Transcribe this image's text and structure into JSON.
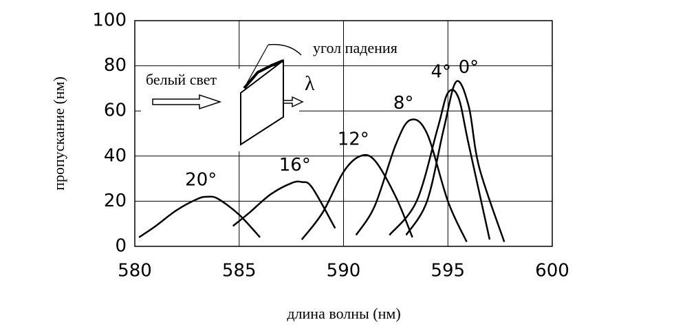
{
  "chart_data": {
    "type": "line",
    "xlabel": "длина волны (нм)",
    "ylabel": "пропускание (нм)",
    "xlim": [
      580,
      600
    ],
    "ylim": [
      0,
      100
    ],
    "xticks": [
      580,
      585,
      590,
      595,
      600
    ],
    "yticks": [
      0,
      20,
      40,
      60,
      80,
      100
    ],
    "grid": true,
    "series": [
      {
        "name": "20°",
        "color": "#000000",
        "x": [
          580.2,
          581,
          582,
          583,
          583.5,
          584,
          585,
          586
        ],
        "values": [
          4,
          9,
          16,
          21,
          22,
          21,
          14,
          4
        ]
      },
      {
        "name": "16°",
        "color": "#000000",
        "x": [
          584.7,
          585.5,
          586.5,
          587.5,
          588,
          588.5,
          589.6
        ],
        "values": [
          9,
          15,
          23,
          28,
          28.5,
          26,
          8
        ]
      },
      {
        "name": "12°",
        "color": "#000000",
        "x": [
          588,
          589,
          590,
          590.8,
          591.5,
          592.5,
          593.3
        ],
        "values": [
          3,
          15,
          33,
          40,
          38,
          22,
          4
        ]
      },
      {
        "name": "8°",
        "color": "#000000",
        "x": [
          590.6,
          591.5,
          592.5,
          593.2,
          594,
          595,
          595.9
        ],
        "values": [
          5,
          18,
          45,
          56,
          50,
          20,
          2
        ]
      },
      {
        "name": "4°",
        "color": "#000000",
        "x": [
          592.2,
          593.5,
          594.5,
          595,
          595.5,
          596,
          597
        ],
        "values": [
          5,
          20,
          52,
          68,
          66,
          45,
          3
        ]
      },
      {
        "name": "0°",
        "color": "#000000",
        "x": [
          593,
          594,
          594.8,
          595.4,
          596,
          596.5,
          597.7
        ],
        "values": [
          5,
          20,
          52,
          73,
          62,
          35,
          2
        ]
      }
    ],
    "annotations": [
      "белый свет",
      "угол падения",
      "λ"
    ]
  }
}
